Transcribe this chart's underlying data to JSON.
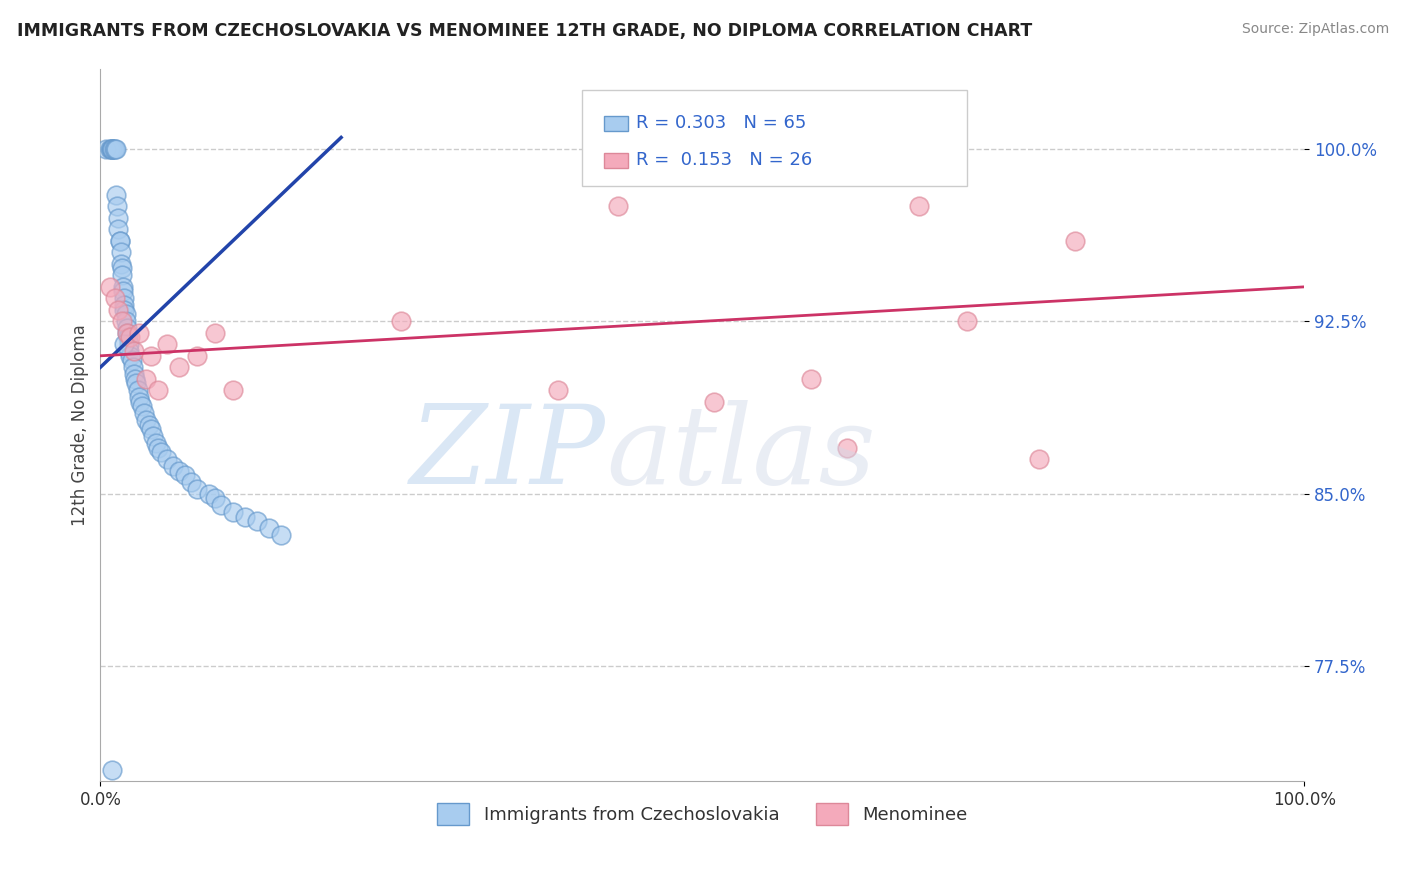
{
  "title": "IMMIGRANTS FROM CZECHOSLOVAKIA VS MENOMINEE 12TH GRADE, NO DIPLOMA CORRELATION CHART",
  "source": "Source: ZipAtlas.com",
  "ylabel": "12th Grade, No Diploma",
  "xlim": [
    0.0,
    1.0
  ],
  "ylim": [
    0.725,
    1.035
  ],
  "yticks": [
    0.775,
    0.85,
    0.925,
    1.0
  ],
  "ytick_labels": [
    "77.5%",
    "85.0%",
    "92.5%",
    "100.0%"
  ],
  "blue_R": 0.303,
  "blue_N": 65,
  "pink_R": 0.153,
  "pink_N": 26,
  "blue_color": "#A8CCEF",
  "pink_color": "#F4AABB",
  "blue_edge_color": "#6699CC",
  "pink_edge_color": "#DD8899",
  "blue_line_color": "#2244AA",
  "pink_line_color": "#CC3366",
  "legend_label_blue": "Immigrants from Czechoslovakia",
  "legend_label_pink": "Menominee",
  "blue_dots_x": [
    0.005,
    0.008,
    0.009,
    0.01,
    0.01,
    0.01,
    0.011,
    0.012,
    0.013,
    0.013,
    0.014,
    0.015,
    0.015,
    0.016,
    0.016,
    0.017,
    0.017,
    0.018,
    0.018,
    0.019,
    0.019,
    0.02,
    0.02,
    0.02,
    0.021,
    0.021,
    0.022,
    0.022,
    0.023,
    0.024,
    0.024,
    0.025,
    0.026,
    0.027,
    0.028,
    0.029,
    0.03,
    0.031,
    0.032,
    0.033,
    0.035,
    0.036,
    0.038,
    0.04,
    0.042,
    0.044,
    0.046,
    0.048,
    0.05,
    0.055,
    0.06,
    0.065,
    0.07,
    0.075,
    0.08,
    0.09,
    0.095,
    0.1,
    0.11,
    0.12,
    0.13,
    0.14,
    0.15,
    0.01,
    0.02
  ],
  "blue_dots_y": [
    1.0,
    1.0,
    1.0,
    1.0,
    1.0,
    1.0,
    1.0,
    1.0,
    1.0,
    0.98,
    0.975,
    0.97,
    0.965,
    0.96,
    0.96,
    0.955,
    0.95,
    0.948,
    0.945,
    0.94,
    0.938,
    0.935,
    0.932,
    0.93,
    0.928,
    0.925,
    0.922,
    0.92,
    0.918,
    0.915,
    0.912,
    0.91,
    0.908,
    0.905,
    0.902,
    0.9,
    0.898,
    0.895,
    0.892,
    0.89,
    0.888,
    0.885,
    0.882,
    0.88,
    0.878,
    0.875,
    0.872,
    0.87,
    0.868,
    0.865,
    0.862,
    0.86,
    0.858,
    0.855,
    0.852,
    0.85,
    0.848,
    0.845,
    0.842,
    0.84,
    0.838,
    0.835,
    0.832,
    0.73,
    0.915
  ],
  "pink_dots_x": [
    0.008,
    0.012,
    0.015,
    0.018,
    0.022,
    0.025,
    0.028,
    0.032,
    0.038,
    0.042,
    0.048,
    0.055,
    0.065,
    0.08,
    0.095,
    0.11,
    0.25,
    0.38,
    0.43,
    0.51,
    0.59,
    0.62,
    0.68,
    0.72,
    0.78,
    0.81
  ],
  "pink_dots_y": [
    0.94,
    0.935,
    0.93,
    0.925,
    0.92,
    0.918,
    0.912,
    0.92,
    0.9,
    0.91,
    0.895,
    0.915,
    0.905,
    0.91,
    0.92,
    0.895,
    0.925,
    0.895,
    0.975,
    0.89,
    0.9,
    0.87,
    0.975,
    0.925,
    0.865,
    0.96
  ],
  "blue_line_x": [
    0.0,
    0.2
  ],
  "blue_line_y": [
    0.905,
    1.005
  ],
  "pink_line_x": [
    0.0,
    1.0
  ],
  "pink_line_y": [
    0.91,
    0.94
  ]
}
